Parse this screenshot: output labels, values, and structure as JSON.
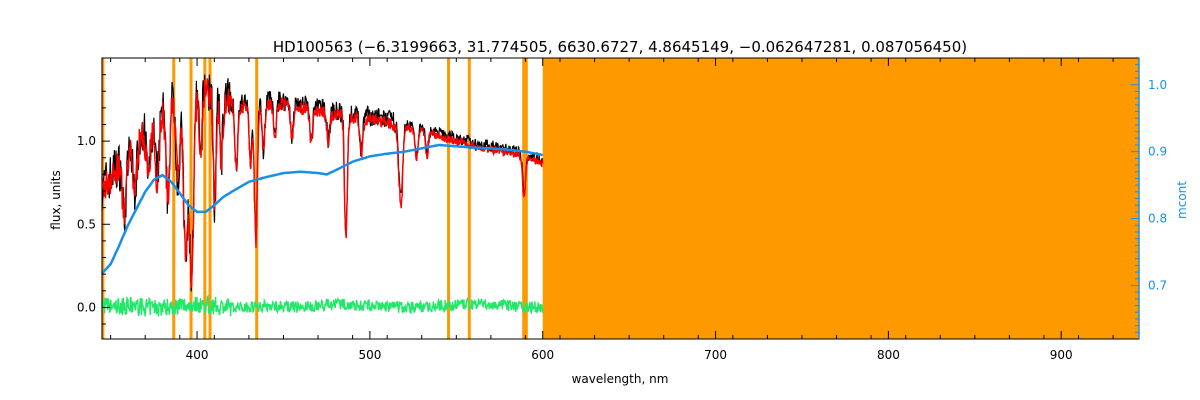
{
  "chart_data": {
    "type": "line",
    "title": "HD100563    (−6.3199663, 31.774505, 6630.6727, 4.8645149, −0.062647281, 0.087056450)",
    "xlabel": "wavelength, nm",
    "ylabel": "flux, units",
    "y2label": "mcont",
    "xlim": [
      345,
      945
    ],
    "ylim": [
      -0.19,
      1.5
    ],
    "y2lim": [
      0.62,
      1.04
    ],
    "x_ticks": [
      400,
      500,
      600,
      700,
      800,
      900
    ],
    "x_tick_labels": [
      "400",
      "500",
      "600",
      "700",
      "800",
      "900"
    ],
    "y_ticks": [
      0.0,
      0.5,
      1.0
    ],
    "y_tick_labels": [
      "0.0",
      "0.5",
      "1.0"
    ],
    "y2_ticks": [
      0.7,
      0.8,
      0.9,
      1.0
    ],
    "y2_tick_labels": [
      "0.7",
      "0.8",
      "0.9",
      "1.0"
    ],
    "masked_band": [
      600,
      945
    ],
    "masked_lines": [
      345.5,
      386.5,
      396.5,
      404.5,
      407.5,
      434.5,
      545.5,
      557.5,
      589,
      590.5
    ],
    "colors": {
      "observed": "#000000",
      "model": "#ff0000",
      "continuum": "#1a8fe6",
      "residual": "#22e86a",
      "mask": "#ff9900",
      "right_axis": "#1a8fe6"
    },
    "series": [
      {
        "key": "observed",
        "x": [
          345,
          352,
          360,
          368,
          375,
          380,
          385,
          390,
          395,
          400,
          405,
          410,
          420,
          430,
          440,
          450,
          460,
          470,
          480,
          490,
          500,
          510,
          520,
          530,
          540,
          550,
          560,
          570,
          580,
          590,
          600
        ],
        "values": [
          0.72,
          0.82,
          0.95,
          1.05,
          1.15,
          1.24,
          1.3,
          1.32,
          1.34,
          1.3,
          1.33,
          1.27,
          1.24,
          1.22,
          1.25,
          1.24,
          1.22,
          1.2,
          1.18,
          1.16,
          1.15,
          1.13,
          1.1,
          1.08,
          1.05,
          1.02,
          0.99,
          0.97,
          0.95,
          0.92,
          0.89
        ]
      },
      {
        "key": "continuum",
        "x": [
          345,
          350,
          355,
          360,
          365,
          370,
          375,
          380,
          385,
          390,
          395,
          400,
          405,
          410,
          415,
          420,
          430,
          440,
          450,
          460,
          470,
          475,
          480,
          490,
          500,
          510,
          520,
          530,
          540,
          550,
          560,
          570,
          580,
          590,
          600
        ],
        "values": [
          0.718,
          0.732,
          0.76,
          0.79,
          0.815,
          0.84,
          0.858,
          0.865,
          0.855,
          0.838,
          0.82,
          0.81,
          0.81,
          0.82,
          0.832,
          0.84,
          0.855,
          0.862,
          0.868,
          0.87,
          0.868,
          0.866,
          0.872,
          0.885,
          0.893,
          0.897,
          0.9,
          0.905,
          0.91,
          0.908,
          0.906,
          0.905,
          0.903,
          0.9,
          0.895
        ]
      },
      {
        "key": "residual",
        "x": [
          345,
          350,
          360,
          370,
          380,
          390,
          400,
          420,
          440,
          460,
          480,
          500,
          520,
          540,
          560,
          580,
          600
        ],
        "values": [
          0.02,
          0.0,
          0.01,
          0.0,
          0.0,
          0.01,
          0.02,
          0.0,
          0.01,
          0.0,
          0.02,
          0.01,
          0.0,
          0.01,
          0.02,
          0.01,
          0.0
        ]
      }
    ],
    "absorption_lines": [
      {
        "x": 358,
        "depth": 0.35
      },
      {
        "x": 364,
        "depth": 0.28
      },
      {
        "x": 372,
        "depth": 0.32
      },
      {
        "x": 377,
        "depth": 0.4
      },
      {
        "x": 383,
        "depth": 0.6
      },
      {
        "x": 389,
        "depth": 0.55
      },
      {
        "x": 393.4,
        "depth": 1.05
      },
      {
        "x": 396.8,
        "depth": 1.12
      },
      {
        "x": 402,
        "depth": 0.45
      },
      {
        "x": 410.2,
        "depth": 0.65
      },
      {
        "x": 414,
        "depth": 0.35
      },
      {
        "x": 422.7,
        "depth": 0.4
      },
      {
        "x": 431,
        "depth": 0.35
      },
      {
        "x": 434.0,
        "depth": 0.85
      },
      {
        "x": 438.4,
        "depth": 0.3
      },
      {
        "x": 445,
        "depth": 0.22
      },
      {
        "x": 455,
        "depth": 0.2
      },
      {
        "x": 466,
        "depth": 0.22
      },
      {
        "x": 476,
        "depth": 0.18
      },
      {
        "x": 486.1,
        "depth": 0.75
      },
      {
        "x": 495,
        "depth": 0.22
      },
      {
        "x": 517,
        "depth": 0.28
      },
      {
        "x": 518.4,
        "depth": 0.38
      },
      {
        "x": 527,
        "depth": 0.18
      },
      {
        "x": 533,
        "depth": 0.15
      },
      {
        "x": 589.2,
        "depth": 0.25
      }
    ]
  }
}
